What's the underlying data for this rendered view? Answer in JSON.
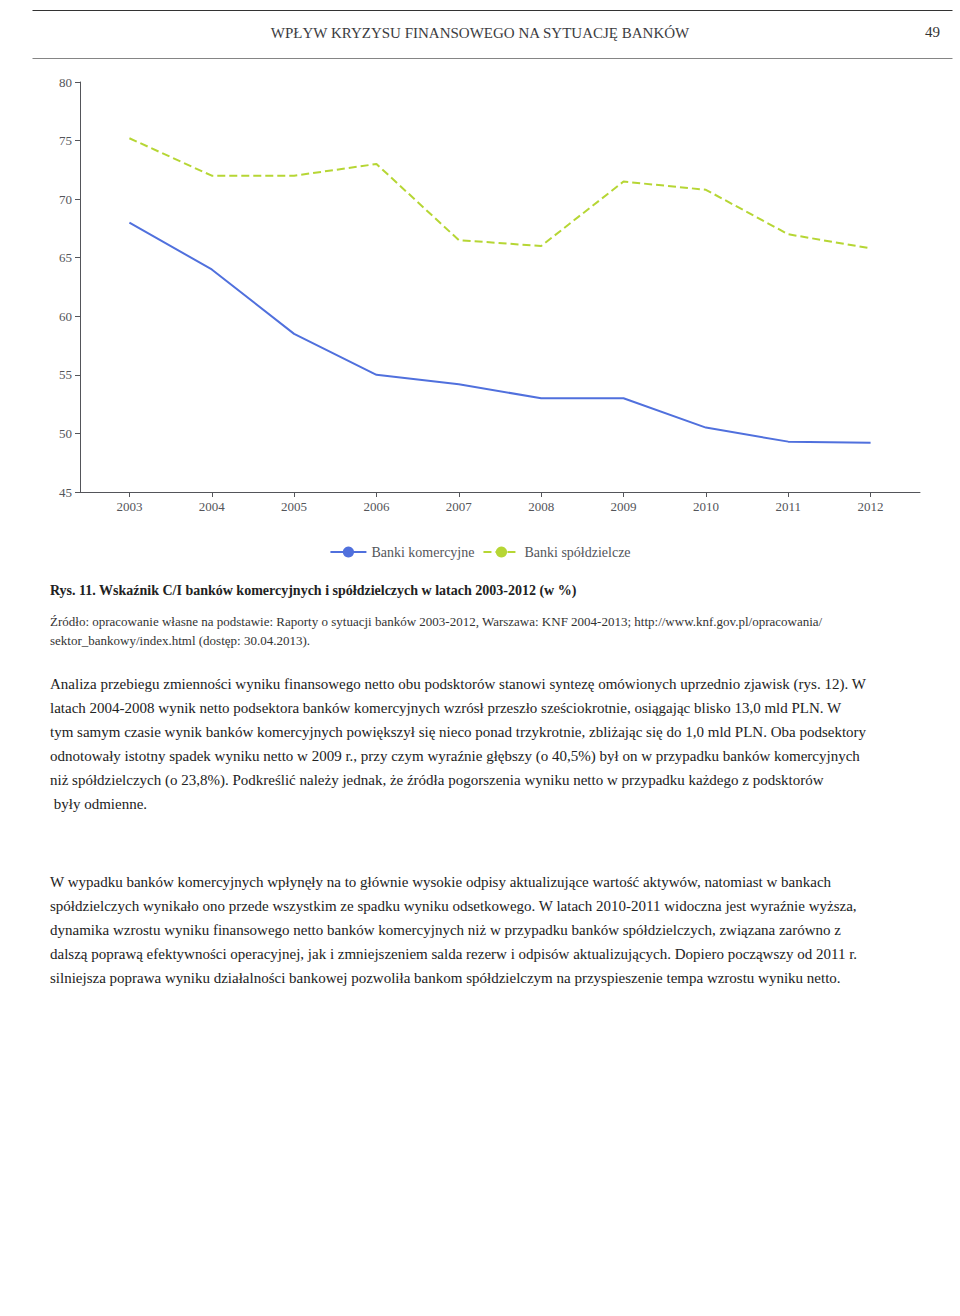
{
  "header": "WPŁYW KRYZYSU FINANSOWEGO NA SYTUACJĘ BANKÓW",
  "page_number": "49",
  "chart_data": {
    "type": "line",
    "title": "Rys. 11. Wskaźnik C/I banków komercyjnych i spółdzielczych w latach 2003-2012 (w %)",
    "x": [
      2003,
      2004,
      2005,
      2006,
      2007,
      2008,
      2009,
      2010,
      2011,
      2012
    ],
    "xlim": [
      2002.4,
      2012.6
    ],
    "xticks": [
      2003,
      2004,
      2005,
      2006,
      2007,
      2008,
      2009,
      2010,
      2011,
      2012
    ],
    "ylim": [
      45,
      80
    ],
    "yticks": [
      45,
      50,
      55,
      60,
      65,
      70,
      75,
      80
    ],
    "grid": false,
    "legend": "bottom",
    "series": [
      {
        "name": "Banki komercyjne",
        "line_style": "solid",
        "values": [
          68.0,
          64.0,
          58.5,
          55.0,
          54.2,
          53.0,
          53.0,
          50.5,
          49.3,
          49.2
        ]
      },
      {
        "name": "Banki spółdzielcze",
        "line_style": "dashed",
        "values": [
          75.2,
          72.0,
          72.0,
          73.0,
          66.5,
          66.0,
          71.5,
          70.8,
          67.0,
          65.8
        ]
      }
    ]
  },
  "source": "Źródło: opracowanie własne na podstawie: Raporty o sytuacji banków 2003-2012, Warszawa: KNF 2004-2013; http://www.knf.gov.pl/opracowania/sektor_bankowy/index.html (dostęp: 30.04.2013).",
  "paragraphs": [
    "Analiza przebiegu zmienności wyniku finansowego netto obu podsktorów stanowi syntezę omówionych uprzednio zjawisk (rys. 12). W latach 2004-2008 wynik netto podsektora banków komercyjnych wzrósł przeszło sześciokrotnie, osiągając blisko 13,0 mld PLN. W tym samym czasie wynik banków komercyjnych powiększył się nieco ponad trzykrotnie, zbliżając się do 1,0 mld PLN. Oba podsektory odnotowały istotny spadek wyniku netto w 2009 r., przy czym wyraźnie głębszy (o 40,5%) był on w przypadku banków komercyjnych niż spółdzielczych (o 23,8%). Podkreślić należy jednak, że źródła pogorszenia wyniku netto w przypadku każdego z podsktorów były odmienne.",
    "W wypadku banków komercyjnych wpłynęły na to głównie wysokie odpisy aktualizujące wartość aktywów, natomiast w bankach spółdzielczych wynikało ono przede wszystkim ze spadku wyniku odsetkowego. W latach 2010-2011 widoczna jest wyraźnie wyższa, dynamika wzrostu wyniku finansowego netto banków komercyjnych niż w przypadku banków spółdzielczych, związana zarówno z dalszą poprawą efektywności operacyjnej, jak i zmniejszeniem salda rezerw i odpisów aktualizujących. Dopiero począwszy od 2011 r. silniejsza poprawa wyniku działalności bankowej pozwoliła bankom spółdzielczym na przyspieszenie tempa wzrostu wyniku netto."
  ]
}
